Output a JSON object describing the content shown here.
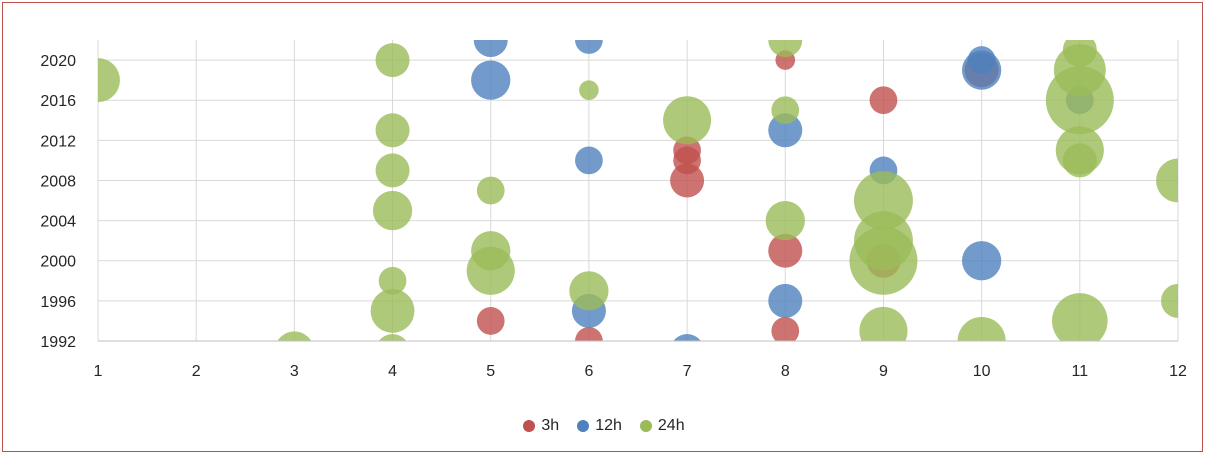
{
  "chart_data": {
    "type": "bubble",
    "x": [
      1,
      2,
      3,
      4,
      5,
      6,
      7,
      8,
      9,
      10,
      11,
      12
    ],
    "xlim": [
      1,
      12
    ],
    "ylim": [
      1992,
      2022
    ],
    "yticks": [
      1992,
      1996,
      2000,
      2004,
      2008,
      2012,
      2016,
      2020
    ],
    "grid": true,
    "legend_position": "bottom",
    "series": [
      {
        "name": "3h",
        "color": "#c0504d",
        "points": [
          {
            "x": 5,
            "y": 1994,
            "size": 2
          },
          {
            "x": 6,
            "y": 1992,
            "size": 2
          },
          {
            "x": 7,
            "y": 2011,
            "size": 2
          },
          {
            "x": 7,
            "y": 2010,
            "size": 2
          },
          {
            "x": 7,
            "y": 2008,
            "size": 3
          },
          {
            "x": 8,
            "y": 2020,
            "size": 1
          },
          {
            "x": 8,
            "y": 2001,
            "size": 3
          },
          {
            "x": 8,
            "y": 1993,
            "size": 2
          },
          {
            "x": 9,
            "y": 2016,
            "size": 2
          },
          {
            "x": 9,
            "y": 2000,
            "size": 3
          },
          {
            "x": 10,
            "y": 2019,
            "size": 3
          }
        ]
      },
      {
        "name": "12h",
        "color": "#4f81bd",
        "points": [
          {
            "x": 5,
            "y": 2022,
            "size": 3
          },
          {
            "x": 5,
            "y": 2018,
            "size": 4
          },
          {
            "x": 6,
            "y": 2022,
            "size": 2
          },
          {
            "x": 6,
            "y": 2010,
            "size": 2
          },
          {
            "x": 6,
            "y": 1995,
            "size": 3
          },
          {
            "x": 7,
            "y": 1991,
            "size": 3
          },
          {
            "x": 8,
            "y": 2013,
            "size": 3
          },
          {
            "x": 8,
            "y": 1996,
            "size": 3
          },
          {
            "x": 9,
            "y": 2009,
            "size": 2
          },
          {
            "x": 10,
            "y": 2020,
            "size": 2
          },
          {
            "x": 10,
            "y": 2019,
            "size": 4
          },
          {
            "x": 10,
            "y": 2000,
            "size": 4
          },
          {
            "x": 11,
            "y": 2016,
            "size": 2
          }
        ]
      },
      {
        "name": "24h",
        "color": "#9bbb59",
        "points": [
          {
            "x": 1,
            "y": 2018,
            "size": 5
          },
          {
            "x": 3,
            "y": 1991,
            "size": 4
          },
          {
            "x": 4,
            "y": 2020,
            "size": 3
          },
          {
            "x": 4,
            "y": 2013,
            "size": 3
          },
          {
            "x": 4,
            "y": 2009,
            "size": 3
          },
          {
            "x": 4,
            "y": 2005,
            "size": 4
          },
          {
            "x": 4,
            "y": 1998,
            "size": 2
          },
          {
            "x": 4,
            "y": 1995,
            "size": 5
          },
          {
            "x": 4,
            "y": 1991,
            "size": 3
          },
          {
            "x": 5,
            "y": 2007,
            "size": 2
          },
          {
            "x": 5,
            "y": 2001,
            "size": 4
          },
          {
            "x": 5,
            "y": 1999,
            "size": 6
          },
          {
            "x": 6,
            "y": 2017,
            "size": 1
          },
          {
            "x": 6,
            "y": 1997,
            "size": 4
          },
          {
            "x": 7,
            "y": 2014,
            "size": 6
          },
          {
            "x": 8,
            "y": 2022,
            "size": 3
          },
          {
            "x": 8,
            "y": 2015,
            "size": 2
          },
          {
            "x": 8,
            "y": 2004,
            "size": 4
          },
          {
            "x": 9,
            "y": 2006,
            "size": 9
          },
          {
            "x": 9,
            "y": 2002,
            "size": 9
          },
          {
            "x": 9,
            "y": 2000,
            "size": 12
          },
          {
            "x": 9,
            "y": 1993,
            "size": 6
          },
          {
            "x": 10,
            "y": 1992,
            "size": 6
          },
          {
            "x": 11,
            "y": 2021,
            "size": 3
          },
          {
            "x": 11,
            "y": 2019,
            "size": 7
          },
          {
            "x": 11,
            "y": 2016,
            "size": 12
          },
          {
            "x": 11,
            "y": 2011,
            "size": 6
          },
          {
            "x": 11,
            "y": 2010,
            "size": 3
          },
          {
            "x": 11,
            "y": 1994,
            "size": 8
          },
          {
            "x": 12,
            "y": 2008,
            "size": 5
          },
          {
            "x": 12,
            "y": 1996,
            "size": 3
          }
        ]
      }
    ]
  }
}
